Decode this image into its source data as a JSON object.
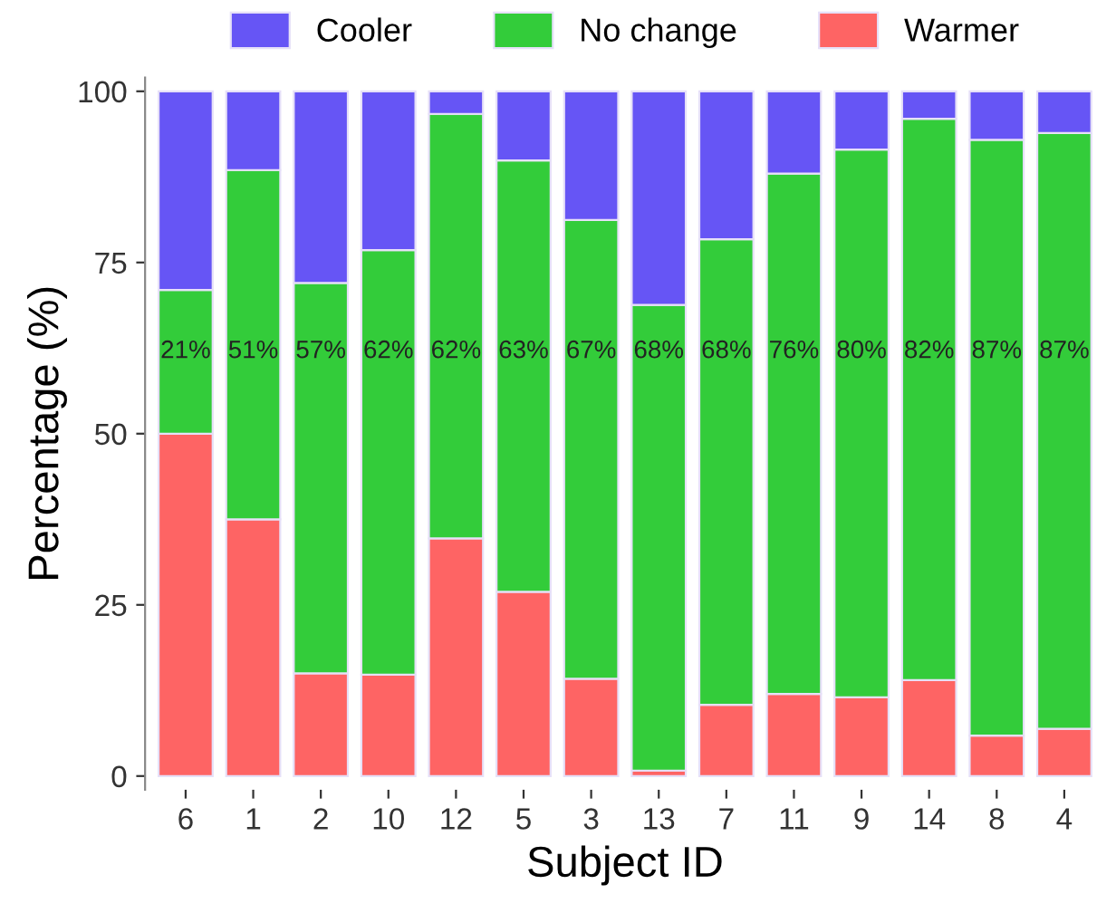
{
  "chart_data": {
    "type": "bar",
    "stacked": true,
    "xlabel": "Subject ID",
    "ylabel": "Percentage (%)",
    "categories": [
      "6",
      "1",
      "2",
      "10",
      "12",
      "5",
      "3",
      "13",
      "7",
      "11",
      "9",
      "14",
      "8",
      "4"
    ],
    "series": [
      {
        "name": "Warmer",
        "color": "#fe6464",
        "values": [
          50,
          37.5,
          15,
          14.8,
          34.7,
          26.9,
          14.2,
          0.8,
          10.4,
          12,
          11.5,
          14,
          5.9,
          6.9
        ]
      },
      {
        "name": "No change",
        "color": "#33cc3a",
        "values": [
          21,
          51,
          57,
          62,
          62,
          63,
          67,
          68,
          68,
          76,
          80,
          82,
          87,
          87
        ],
        "value_labels": [
          "21%",
          "51%",
          "57%",
          "62%",
          "62%",
          "63%",
          "67%",
          "68%",
          "68%",
          "76%",
          "80%",
          "82%",
          "87%",
          "87%"
        ]
      },
      {
        "name": "Cooler",
        "color": "#6655f5",
        "values": [
          29,
          11.5,
          28,
          23.2,
          3.3,
          10.1,
          18.8,
          31.2,
          21.6,
          12,
          8.5,
          4,
          7.1,
          6.1
        ]
      }
    ],
    "ylim": [
      -2,
      102
    ],
    "yticks": [
      0,
      25,
      50,
      75,
      100
    ],
    "grid": false,
    "legend": "top"
  }
}
